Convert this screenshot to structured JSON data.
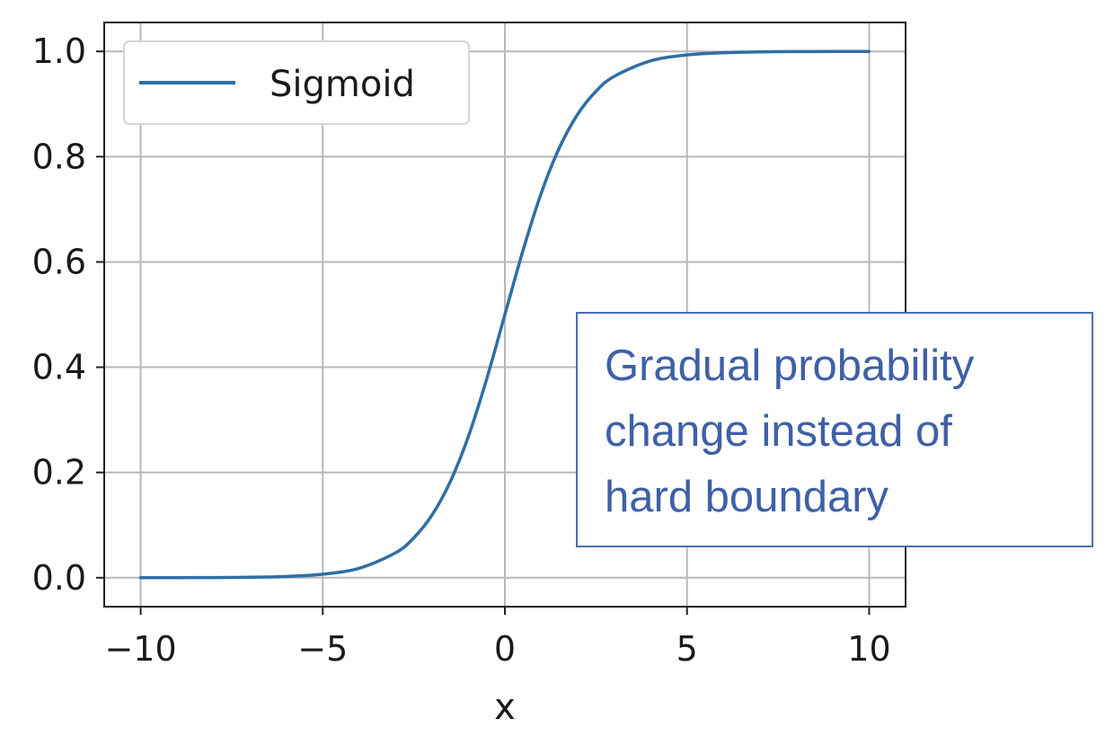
{
  "chart_data": {
    "type": "line",
    "title": "",
    "xlabel": "x",
    "ylabel": "",
    "xlim": [
      -11,
      11
    ],
    "ylim": [
      -0.055,
      1.055
    ],
    "xticks": [
      -10,
      -5,
      0,
      5,
      10
    ],
    "xtick_labels": [
      "−10",
      "−5",
      "0",
      "5",
      "10"
    ],
    "yticks": [
      0.0,
      0.2,
      0.4,
      0.6,
      0.8,
      1.0
    ],
    "ytick_labels": [
      "0.0",
      "0.2",
      "0.4",
      "0.6",
      "0.8",
      "1.0"
    ],
    "grid": true,
    "legend_position": "upper-left",
    "series": [
      {
        "name": "Sigmoid",
        "color": "#2f6fa5",
        "x": [
          -10,
          -9,
          -8,
          -7,
          -6,
          -5,
          -4,
          -3,
          -2.5,
          -2,
          -1.5,
          -1,
          -0.5,
          0,
          0.5,
          1,
          1.5,
          2,
          2.5,
          3,
          4,
          5,
          6,
          7,
          8,
          9,
          10
        ],
        "y": [
          4.54e-05,
          0.0001234,
          0.0003354,
          0.0009111,
          0.0024726,
          0.0066929,
          0.0179862,
          0.0474259,
          0.0758582,
          0.1192029,
          0.1824255,
          0.2689414,
          0.3775407,
          0.5,
          0.6224593,
          0.7310586,
          0.8175745,
          0.8807971,
          0.9241418,
          0.9525741,
          0.9820138,
          0.9933071,
          0.9975274,
          0.9990889,
          0.9996646,
          0.9998766,
          0.9999546
        ]
      }
    ],
    "annotation": {
      "lines": [
        "Gradual probability",
        "change instead of",
        "hard boundary"
      ],
      "color": "#3f60a8",
      "border_color": "#4a6fb5"
    }
  }
}
